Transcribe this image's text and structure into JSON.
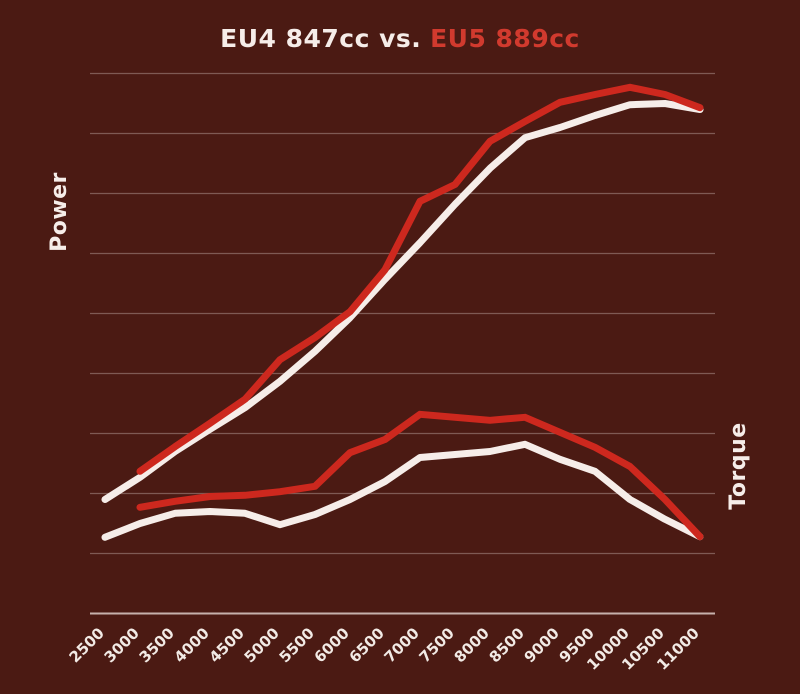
{
  "chart": {
    "title_white": "EU4 847cc vs.",
    "title_red": "EU5 889cc",
    "ylabel_left": "Power",
    "ylabel_right": "Torque"
  },
  "colors": {
    "background": "#4b1a13",
    "eu4_line": "#f6ede9",
    "eu5_line": "#cd281e",
    "title_red_text": "#d13a2e",
    "gridline": "rgba(240,228,224,0.32)",
    "axis_line": "rgba(240,228,224,0.75)",
    "tick_text": "#f2eae5"
  },
  "chart_data": {
    "type": "line",
    "title": "EU4 847cc vs. EU5 889cc",
    "xlabel": "",
    "ylabel_left": "Power",
    "ylabel_right": "Torque",
    "x_ticks": [
      2500,
      3000,
      3500,
      4000,
      4500,
      5000,
      5500,
      6000,
      6500,
      7000,
      7500,
      8000,
      8500,
      9000,
      9500,
      10000,
      10500,
      11000
    ],
    "y_axis": {
      "numeric_labels_visible": false,
      "units": "relative grid units (0 = bottom axis line, 9 = top gridline)",
      "gridlines_horizontal": 9,
      "ylim": [
        0,
        9
      ]
    },
    "legend": {
      "position": "in title",
      "entries": [
        {
          "label": "EU4 847cc",
          "color": "#f6ede9"
        },
        {
          "label": "EU5 889cc",
          "color": "#cd281e"
        }
      ]
    },
    "series": [
      {
        "name": "EU4 847cc Power",
        "color_key": "eu4_line",
        "x": [
          2500,
          3000,
          3500,
          4000,
          4500,
          5000,
          5500,
          6000,
          6500,
          7000,
          7500,
          8000,
          8500,
          9000,
          9500,
          10000,
          10500,
          11000
        ],
        "y": [
          1.9,
          2.27,
          2.7,
          3.07,
          3.43,
          3.87,
          4.37,
          4.93,
          5.57,
          6.18,
          6.82,
          7.42,
          7.93,
          8.1,
          8.3,
          8.48,
          8.5,
          8.4
        ]
      },
      {
        "name": "EU5 889cc Power",
        "color_key": "eu5_line",
        "x": [
          3000,
          3500,
          4000,
          4500,
          5000,
          5500,
          6000,
          6500,
          7000,
          7500,
          8000,
          8500,
          9000,
          9500,
          10000,
          10500,
          11000
        ],
        "y": [
          2.37,
          2.78,
          3.17,
          3.57,
          4.23,
          4.6,
          5.03,
          5.73,
          6.87,
          7.15,
          7.87,
          8.2,
          8.52,
          8.65,
          8.77,
          8.65,
          8.43
        ]
      },
      {
        "name": "EU4 847cc Torque",
        "color_key": "eu4_line",
        "x": [
          2500,
          3000,
          3500,
          4000,
          4500,
          5000,
          5500,
          6000,
          6500,
          7000,
          7500,
          8000,
          8500,
          9000,
          9500,
          10000,
          10500,
          11000
        ],
        "y": [
          1.27,
          1.5,
          1.67,
          1.7,
          1.67,
          1.48,
          1.65,
          1.9,
          2.2,
          2.6,
          2.65,
          2.7,
          2.82,
          2.57,
          2.37,
          1.9,
          1.57,
          1.28
        ]
      },
      {
        "name": "EU5 889cc Torque",
        "color_key": "eu5_line",
        "x": [
          3000,
          3500,
          4000,
          4500,
          5000,
          5500,
          6000,
          6500,
          7000,
          7500,
          8000,
          8500,
          9000,
          9500,
          10000,
          10500,
          11000
        ],
        "y": [
          1.77,
          1.87,
          1.95,
          1.97,
          2.03,
          2.12,
          2.68,
          2.9,
          3.32,
          3.27,
          3.22,
          3.27,
          3.02,
          2.77,
          2.45,
          1.9,
          1.28
        ]
      }
    ]
  }
}
